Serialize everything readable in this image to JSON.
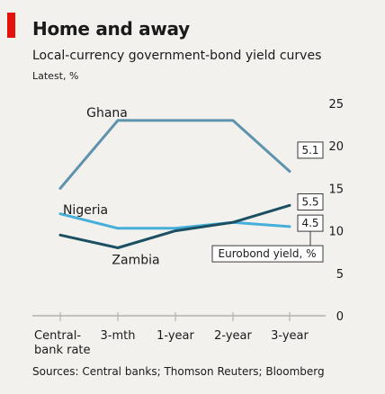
{
  "colors": {
    "accent": "#e3120b",
    "ghana": "#5f93ad",
    "nigeria": "#46afd9",
    "zambia": "#1b4f62",
    "axis": "#b5b1ab",
    "grid": "#d8d4cd"
  },
  "header": {
    "title": "Home and away",
    "subtitle": "Local-currency government-bond yield curves",
    "units": "Latest, %"
  },
  "footer": {
    "source": "Sources: Central banks; Thomson Reuters; Bloomberg"
  },
  "chart_data": {
    "type": "line",
    "title": "Home and away",
    "subtitle": "Local-currency government-bond yield curves",
    "ylabel": "Latest, %",
    "categories": [
      [
        "Central-",
        "bank rate"
      ],
      [
        "3-mth"
      ],
      [
        "1-year"
      ],
      [
        "2-year"
      ],
      [
        "3-year"
      ]
    ],
    "ylim": [
      0,
      25
    ],
    "yticks": [
      0,
      5,
      10,
      15,
      20,
      25
    ],
    "y_axis_side": "right",
    "series": [
      {
        "name": "Ghana",
        "values": [
          15,
          23,
          23,
          23,
          17
        ]
      },
      {
        "name": "Nigeria",
        "values": [
          12,
          10.3,
          10.3,
          11,
          10.5
        ]
      },
      {
        "name": "Zambia",
        "values": [
          9.5,
          8,
          10,
          11,
          13
        ]
      }
    ],
    "eurobond_yields": {
      "label": "Eurobond yield, %",
      "values": [
        {
          "series": "Ghana",
          "value": "5.1"
        },
        {
          "series": "Zambia",
          "value": "5.5"
        },
        {
          "series": "Nigeria",
          "value": "4.5"
        }
      ]
    },
    "grid": false
  }
}
